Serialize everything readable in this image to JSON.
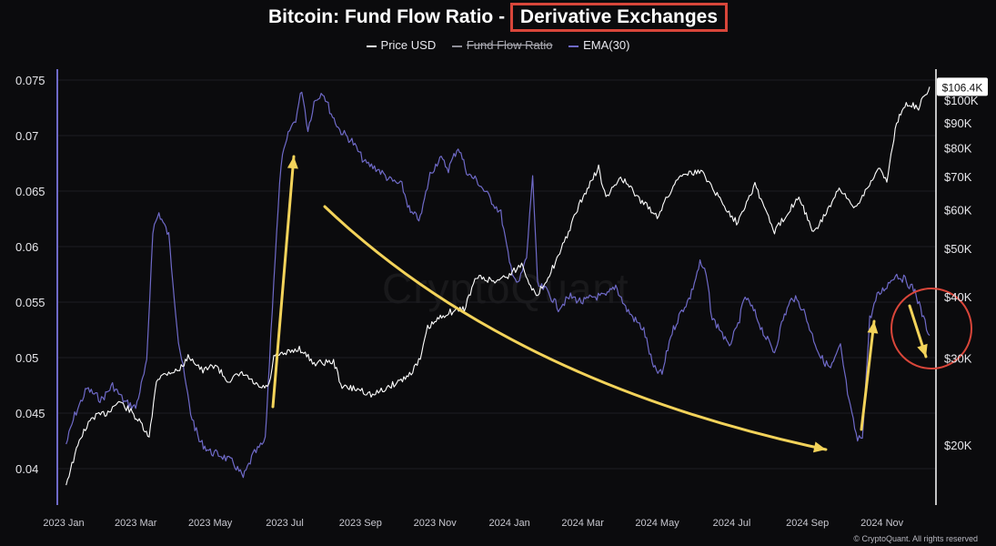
{
  "title_main": "Bitcoin: Fund Flow Ratio - ",
  "title_highlight": "Derivative Exchanges",
  "legend": [
    {
      "label": "Price USD",
      "color": "#ffffff",
      "strike": false
    },
    {
      "label": "Fund Flow Ratio",
      "color": "#8f8f98",
      "strike": true
    },
    {
      "label": "EMA(30)",
      "color": "#6f6ac8",
      "strike": false
    }
  ],
  "watermark": "CryptoQuant",
  "credit": "© CryptoQuant. All rights reserved",
  "colors": {
    "price": "#ffffff",
    "ema": "#6f6ac8",
    "annotation": "#f3d35a",
    "highlight": "#d9463a",
    "left_axis": "#6f6ac8"
  },
  "chart_data": {
    "type": "line",
    "title": "Bitcoin: Fund Flow Ratio - Derivative Exchanges",
    "x_ticks": [
      "2023 Jan",
      "2023 Mar",
      "2023 May",
      "2023 Jul",
      "2023 Sep",
      "2023 Nov",
      "2024 Jan",
      "2024 Mar",
      "2024 May",
      "2024 Jul",
      "2024 Sep",
      "2024 Nov"
    ],
    "x_range": [
      "2023-01-01",
      "2024-12-10"
    ],
    "left_axis": {
      "ticks": [
        "0.075",
        "0.07",
        "0.065",
        "0.06",
        "0.055",
        "0.05",
        "0.045",
        "0.04"
      ],
      "range": [
        0.038,
        0.0762
      ]
    },
    "right_axis": {
      "scale": "log",
      "ticks": [
        "$100K",
        "$90K",
        "$80K",
        "$70K",
        "$60K",
        "$50K",
        "$40K",
        "$30K",
        "$20K"
      ],
      "range": [
        17000,
        112000
      ],
      "current_label": "$106.4K"
    },
    "series": [
      {
        "name": "EMA(30)",
        "axis": "left",
        "points": [
          [
            "2023-01-03",
            0.0422
          ],
          [
            "2023-01-10",
            0.0448
          ],
          [
            "2023-01-20",
            0.0472
          ],
          [
            "2023-02-01",
            0.0462
          ],
          [
            "2023-02-10",
            0.0475
          ],
          [
            "2023-02-20",
            0.046
          ],
          [
            "2023-03-01",
            0.0455
          ],
          [
            "2023-03-10",
            0.0495
          ],
          [
            "2023-03-15",
            0.0615
          ],
          [
            "2023-03-20",
            0.063
          ],
          [
            "2023-03-28",
            0.061
          ],
          [
            "2023-04-05",
            0.0515
          ],
          [
            "2023-04-15",
            0.045
          ],
          [
            "2023-04-22",
            0.0425
          ],
          [
            "2023-05-01",
            0.0415
          ],
          [
            "2023-05-10",
            0.0412
          ],
          [
            "2023-05-20",
            0.0405
          ],
          [
            "2023-05-28",
            0.0392
          ],
          [
            "2023-06-05",
            0.0412
          ],
          [
            "2023-06-15",
            0.0425
          ],
          [
            "2023-06-22",
            0.057
          ],
          [
            "2023-06-28",
            0.0675
          ],
          [
            "2023-07-05",
            0.0705
          ],
          [
            "2023-07-10",
            0.0715
          ],
          [
            "2023-07-15",
            0.0742
          ],
          [
            "2023-07-20",
            0.0705
          ],
          [
            "2023-07-25",
            0.073
          ],
          [
            "2023-08-01",
            0.074
          ],
          [
            "2023-08-08",
            0.072
          ],
          [
            "2023-08-15",
            0.0705
          ],
          [
            "2023-08-25",
            0.0695
          ],
          [
            "2023-09-05",
            0.0675
          ],
          [
            "2023-09-15",
            0.067
          ],
          [
            "2023-09-25",
            0.066
          ],
          [
            "2023-10-05",
            0.0655
          ],
          [
            "2023-10-12",
            0.063
          ],
          [
            "2023-10-20",
            0.0625
          ],
          [
            "2023-10-28",
            0.0665
          ],
          [
            "2023-11-05",
            0.068
          ],
          [
            "2023-11-12",
            0.067
          ],
          [
            "2023-11-20",
            0.069
          ],
          [
            "2023-11-28",
            0.0665
          ],
          [
            "2023-12-05",
            0.066
          ],
          [
            "2023-12-15",
            0.0645
          ],
          [
            "2023-12-25",
            0.063
          ],
          [
            "2024-01-01",
            0.0585
          ],
          [
            "2024-01-08",
            0.0565
          ],
          [
            "2024-01-15",
            0.059
          ],
          [
            "2024-01-20",
            0.0665
          ],
          [
            "2024-01-24",
            0.0565
          ],
          [
            "2024-02-01",
            0.056
          ],
          [
            "2024-02-10",
            0.0545
          ],
          [
            "2024-02-20",
            0.0555
          ],
          [
            "2024-03-01",
            0.055
          ],
          [
            "2024-03-10",
            0.0555
          ],
          [
            "2024-03-20",
            0.0555
          ],
          [
            "2024-03-28",
            0.0565
          ],
          [
            "2024-04-05",
            0.0545
          ],
          [
            "2024-04-12",
            0.0535
          ],
          [
            "2024-04-20",
            0.0525
          ],
          [
            "2024-04-28",
            0.049
          ],
          [
            "2024-05-05",
            0.0485
          ],
          [
            "2024-05-12",
            0.052
          ],
          [
            "2024-05-20",
            0.054
          ],
          [
            "2024-05-28",
            0.0555
          ],
          [
            "2024-06-05",
            0.0585
          ],
          [
            "2024-06-10",
            0.0575
          ],
          [
            "2024-06-15",
            0.0535
          ],
          [
            "2024-06-22",
            0.0525
          ],
          [
            "2024-06-28",
            0.051
          ],
          [
            "2024-07-05",
            0.0525
          ],
          [
            "2024-07-12",
            0.0555
          ],
          [
            "2024-07-20",
            0.054
          ],
          [
            "2024-07-28",
            0.052
          ],
          [
            "2024-08-05",
            0.0505
          ],
          [
            "2024-08-12",
            0.0535
          ],
          [
            "2024-08-20",
            0.0555
          ],
          [
            "2024-08-28",
            0.0545
          ],
          [
            "2024-09-05",
            0.052
          ],
          [
            "2024-09-12",
            0.05
          ],
          [
            "2024-09-20",
            0.049
          ],
          [
            "2024-09-28",
            0.051
          ],
          [
            "2024-10-05",
            0.046
          ],
          [
            "2024-10-12",
            0.0425
          ],
          [
            "2024-10-16",
            0.043
          ],
          [
            "2024-10-22",
            0.0535
          ],
          [
            "2024-10-28",
            0.0555
          ],
          [
            "2024-11-05",
            0.0565
          ],
          [
            "2024-11-12",
            0.0575
          ],
          [
            "2024-11-20",
            0.057
          ],
          [
            "2024-11-28",
            0.056
          ],
          [
            "2024-12-05",
            0.0535
          ],
          [
            "2024-12-10",
            0.052
          ]
        ]
      },
      {
        "name": "Price USD",
        "axis": "right",
        "points": [
          [
            "2023-01-03",
            16700
          ],
          [
            "2023-01-15",
            20800
          ],
          [
            "2023-01-25",
            22800
          ],
          [
            "2023-02-05",
            23200
          ],
          [
            "2023-02-15",
            24500
          ],
          [
            "2023-02-25",
            23400
          ],
          [
            "2023-03-05",
            22100
          ],
          [
            "2023-03-12",
            20600
          ],
          [
            "2023-03-18",
            27200
          ],
          [
            "2023-03-28",
            28100
          ],
          [
            "2023-04-05",
            28300
          ],
          [
            "2023-04-14",
            30300
          ],
          [
            "2023-04-25",
            28200
          ],
          [
            "2023-05-05",
            29100
          ],
          [
            "2023-05-15",
            27000
          ],
          [
            "2023-05-28",
            27900
          ],
          [
            "2023-06-10",
            26100
          ],
          [
            "2023-06-18",
            26300
          ],
          [
            "2023-06-22",
            30100
          ],
          [
            "2023-07-01",
            30600
          ],
          [
            "2023-07-13",
            31400
          ],
          [
            "2023-07-25",
            29300
          ],
          [
            "2023-08-10",
            29500
          ],
          [
            "2023-08-17",
            26200
          ],
          [
            "2023-09-01",
            25900
          ],
          [
            "2023-09-11",
            25200
          ],
          [
            "2023-09-25",
            26300
          ],
          [
            "2023-10-10",
            27600
          ],
          [
            "2023-10-20",
            29800
          ],
          [
            "2023-10-26",
            34500
          ],
          [
            "2023-11-10",
            37000
          ],
          [
            "2023-11-25",
            37800
          ],
          [
            "2023-12-05",
            43800
          ],
          [
            "2023-12-20",
            43000
          ],
          [
            "2024-01-01",
            44200
          ],
          [
            "2024-01-11",
            46500
          ],
          [
            "2024-01-23",
            39800
          ],
          [
            "2024-02-10",
            48000
          ],
          [
            "2024-02-28",
            62000
          ],
          [
            "2024-03-14",
            73000
          ],
          [
            "2024-03-20",
            63000
          ],
          [
            "2024-04-01",
            70000
          ],
          [
            "2024-04-15",
            63500
          ],
          [
            "2024-05-01",
            58200
          ],
          [
            "2024-05-20",
            71000
          ],
          [
            "2024-06-07",
            71500
          ],
          [
            "2024-06-25",
            61000
          ],
          [
            "2024-07-05",
            56500
          ],
          [
            "2024-07-20",
            67500
          ],
          [
            "2024-08-05",
            54000
          ],
          [
            "2024-08-25",
            64000
          ],
          [
            "2024-09-06",
            53500
          ],
          [
            "2024-09-27",
            65800
          ],
          [
            "2024-10-10",
            60500
          ],
          [
            "2024-10-29",
            72600
          ],
          [
            "2024-11-05",
            68800
          ],
          [
            "2024-11-13",
            90500
          ],
          [
            "2024-11-22",
            98500
          ],
          [
            "2024-12-01",
            96500
          ],
          [
            "2024-12-10",
            106400
          ]
        ]
      }
    ]
  }
}
